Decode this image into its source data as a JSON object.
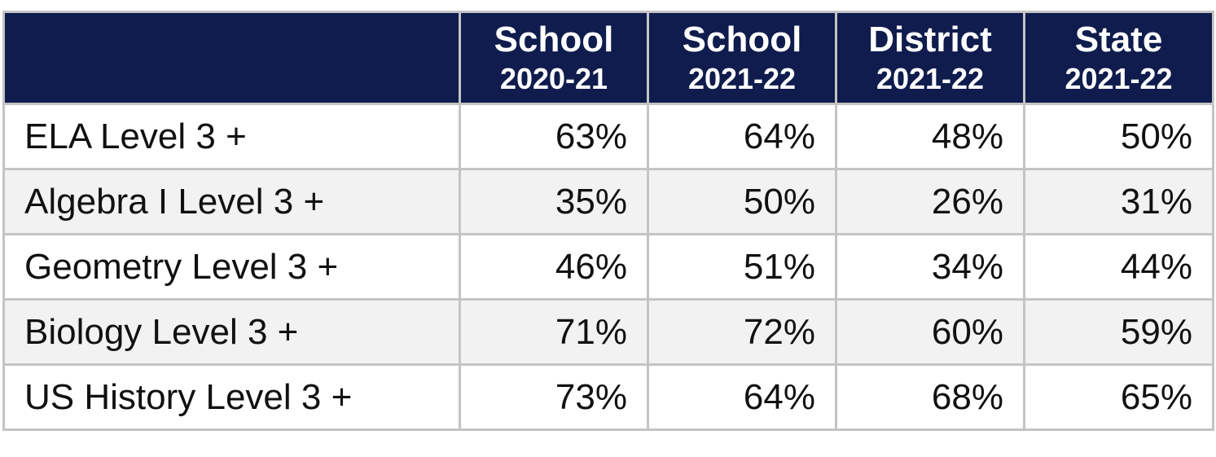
{
  "table": {
    "columns": [
      {
        "line1": "School",
        "line2": "2020-21"
      },
      {
        "line1": "School",
        "line2": "2021-22"
      },
      {
        "line1": "District",
        "line2": "2021-22"
      },
      {
        "line1": "State",
        "line2": "2021-22"
      }
    ],
    "rows": [
      {
        "label": "ELA Level 3 +",
        "values": [
          "63%",
          "64%",
          "48%",
          "50%"
        ]
      },
      {
        "label": "Algebra I Level 3 +",
        "values": [
          "35%",
          "50%",
          "26%",
          "31%"
        ]
      },
      {
        "label": "Geometry Level 3 +",
        "values": [
          "46%",
          "51%",
          "34%",
          "44%"
        ]
      },
      {
        "label": "Biology Level 3 +",
        "values": [
          "71%",
          "72%",
          "60%",
          "59%"
        ]
      },
      {
        "label": "US History Level 3 +",
        "values": [
          "73%",
          "64%",
          "68%",
          "65%"
        ]
      }
    ]
  }
}
